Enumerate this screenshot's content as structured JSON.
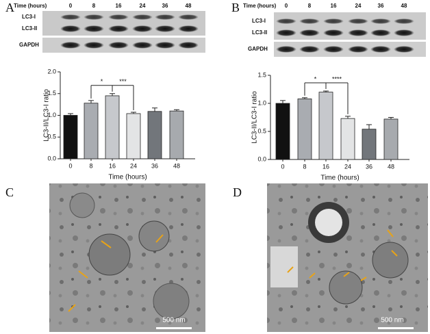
{
  "chart_data": [
    {
      "type": "bar",
      "x_label": "Time (hours)",
      "y_label": "LC3-II/LC3-I  ratio",
      "categories": [
        "0",
        "8",
        "16",
        "24",
        "36",
        "48"
      ],
      "values": [
        1.0,
        1.28,
        1.45,
        1.04,
        1.09,
        1.1
      ],
      "errors": [
        0.04,
        0.06,
        0.05,
        0.03,
        0.08,
        0.03
      ],
      "colors": [
        "#111111",
        "#a9acb1",
        "#c6c8cc",
        "#e3e4e5",
        "#72767b",
        "#a7aaae"
      ],
      "ylim": [
        0,
        2.0
      ],
      "yticks": [
        {
          "value": 0,
          "label": "0.0"
        },
        {
          "value": 0.5,
          "label": "0.5"
        },
        {
          "value": 1.0,
          "label": "1.0"
        },
        {
          "value": 1.5,
          "label": "1.5"
        },
        {
          "value": 2.0,
          "label": "2.0"
        }
      ],
      "annotations": [
        {
          "text": "*",
          "between": [
            "8",
            "16"
          ]
        },
        {
          "text": "***",
          "between": [
            "16",
            "24"
          ]
        }
      ]
    },
    {
      "type": "bar",
      "x_label": "Time (hours)",
      "y_label": "LC3-II/LC3-I  ratio",
      "categories": [
        "0",
        "8",
        "16",
        "24",
        "36",
        "48"
      ],
      "values": [
        1.0,
        1.08,
        1.2,
        0.73,
        0.54,
        0.72
      ],
      "errors": [
        0.05,
        0.02,
        0.02,
        0.04,
        0.08,
        0.03
      ],
      "colors": [
        "#111111",
        "#a9acb1",
        "#c6c8cc",
        "#e3e4e5",
        "#72767b",
        "#a7aaae"
      ],
      "ylim": [
        0,
        1.5
      ],
      "yticks": [
        {
          "value": 0,
          "label": "0.0"
        },
        {
          "value": 0.5,
          "label": "0.5"
        },
        {
          "value": 1.0,
          "label": "1.0"
        },
        {
          "value": 1.5,
          "label": "1.5"
        }
      ],
      "annotations": [
        {
          "text": "*",
          "between": [
            "8",
            "16"
          ]
        },
        {
          "text": "****",
          "between": [
            "16",
            "24"
          ]
        }
      ]
    }
  ],
  "panels": {
    "a": "A",
    "b": "B",
    "c": "C",
    "d": "D"
  },
  "blots": [
    {
      "time_label": "Time (hours)",
      "lanes": [
        "0",
        "8",
        "16",
        "24",
        "36",
        "48"
      ],
      "band_top": "LC3-I",
      "band_bottom": "LC3-II",
      "loading": "GAPDH"
    },
    {
      "time_label": "Time (hours)",
      "lanes": [
        "0",
        "8",
        "16",
        "24",
        "36",
        "48"
      ],
      "band_top": "LC3-I",
      "band_bottom": "LC3-II",
      "loading": "GAPDH"
    }
  ],
  "micrographs": [
    {
      "scale": "500 nm"
    },
    {
      "scale": "500 nm"
    }
  ]
}
